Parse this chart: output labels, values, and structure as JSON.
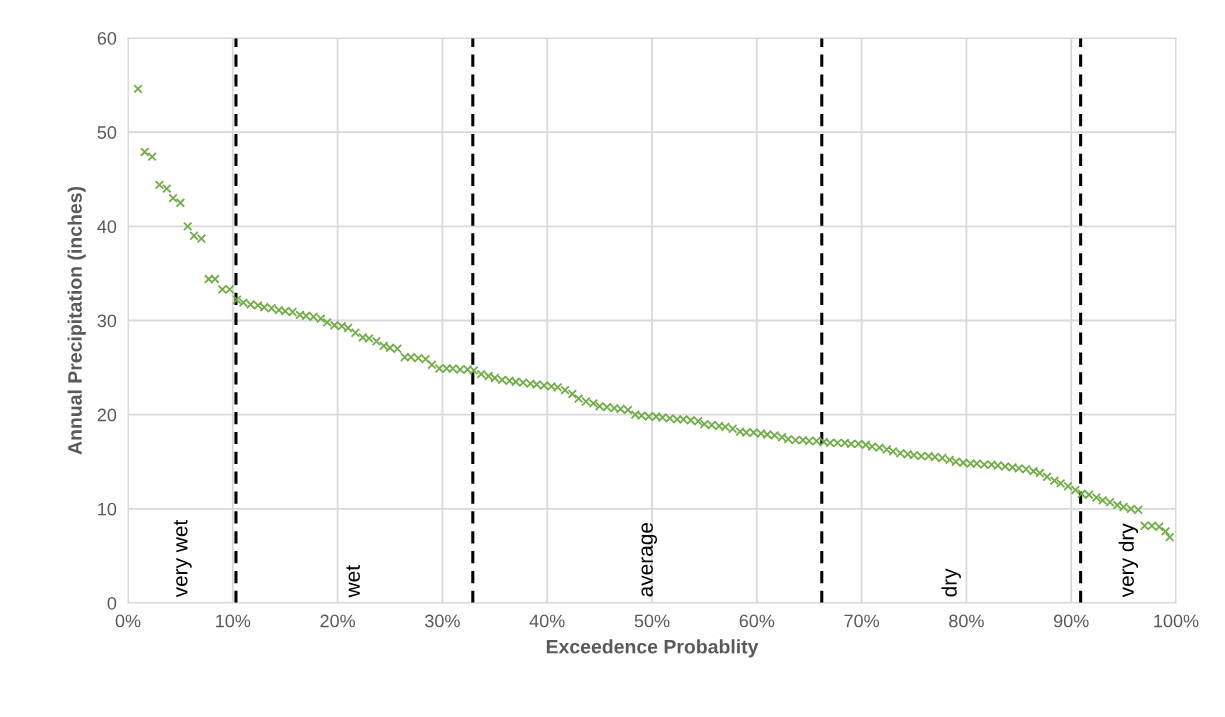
{
  "chart_data": {
    "type": "scatter",
    "xlabel": "Exceedence Probablity",
    "ylabel": "Annual Precipitation (inches)",
    "x": [
      0.95,
      1.6,
      2.3,
      3.0,
      3.7,
      4.3,
      5.0,
      5.7,
      6.3,
      7.0,
      7.7,
      8.3,
      9.0,
      9.7,
      10.4,
      11.0,
      11.7,
      12.4,
      13.0,
      13.7,
      14.4,
      15.0,
      15.7,
      16.4,
      17.0,
      17.7,
      18.4,
      19.0,
      19.7,
      20.4,
      21.0,
      21.7,
      22.4,
      23.0,
      23.7,
      24.4,
      25.0,
      25.7,
      26.4,
      27.0,
      27.7,
      28.4,
      29.0,
      29.7,
      30.4,
      31.0,
      31.7,
      32.4,
      33.0,
      33.7,
      34.4,
      35.0,
      35.7,
      36.4,
      37.0,
      37.7,
      38.4,
      39.0,
      39.7,
      40.4,
      41.0,
      41.7,
      42.4,
      43.0,
      43.7,
      44.4,
      45.0,
      45.7,
      46.4,
      47.0,
      47.7,
      48.4,
      49.0,
      49.7,
      50.4,
      51.0,
      51.7,
      52.4,
      53.0,
      53.7,
      54.4,
      55.0,
      55.7,
      56.4,
      57.0,
      57.7,
      58.4,
      59.0,
      59.7,
      60.4,
      61.0,
      61.7,
      62.4,
      63.0,
      63.7,
      64.4,
      65.0,
      65.7,
      66.4,
      67.0,
      67.7,
      68.4,
      69.0,
      69.7,
      70.4,
      71.0,
      71.7,
      72.4,
      73.0,
      73.7,
      74.4,
      75.0,
      75.7,
      76.4,
      77.0,
      77.7,
      78.4,
      79.0,
      79.7,
      80.4,
      81.0,
      81.7,
      82.4,
      83.0,
      83.7,
      84.4,
      85.0,
      85.7,
      86.4,
      87.0,
      87.7,
      88.4,
      89.0,
      89.7,
      90.4,
      91.0,
      91.7,
      92.4,
      93.0,
      93.7,
      94.4,
      95.0,
      95.7,
      96.4,
      97.0,
      97.7,
      98.4,
      99.0,
      99.4
    ],
    "series": [
      {
        "color": "#70ad47",
        "values": [
          54.6,
          47.9,
          47.4,
          44.4,
          44.0,
          43.0,
          42.5,
          40.0,
          39.0,
          38.7,
          34.4,
          34.4,
          33.3,
          33.3,
          32.2,
          31.9,
          31.7,
          31.6,
          31.4,
          31.3,
          31.1,
          31.0,
          30.9,
          30.6,
          30.5,
          30.4,
          30.2,
          29.8,
          29.5,
          29.4,
          29.2,
          28.7,
          28.2,
          28.1,
          27.8,
          27.3,
          27.1,
          27.0,
          26.1,
          26.1,
          26.0,
          25.9,
          25.3,
          24.9,
          24.9,
          24.9,
          24.8,
          24.8,
          24.7,
          24.3,
          24.1,
          23.9,
          23.7,
          23.6,
          23.5,
          23.4,
          23.3,
          23.2,
          23.1,
          23.0,
          22.9,
          22.6,
          22.2,
          21.7,
          21.4,
          21.2,
          20.9,
          20.8,
          20.7,
          20.6,
          20.5,
          20.0,
          19.9,
          19.8,
          19.8,
          19.7,
          19.6,
          19.5,
          19.5,
          19.4,
          19.3,
          19.0,
          18.9,
          18.8,
          18.7,
          18.5,
          18.2,
          18.1,
          18.1,
          18.0,
          17.9,
          17.8,
          17.6,
          17.4,
          17.3,
          17.3,
          17.2,
          17.2,
          17.1,
          17.0,
          17.0,
          17.0,
          16.9,
          16.9,
          16.8,
          16.6,
          16.5,
          16.3,
          16.1,
          15.9,
          15.8,
          15.7,
          15.6,
          15.6,
          15.5,
          15.4,
          15.2,
          15.0,
          14.9,
          14.8,
          14.8,
          14.7,
          14.7,
          14.6,
          14.5,
          14.4,
          14.3,
          14.2,
          14.0,
          13.8,
          13.4,
          13.0,
          12.7,
          12.4,
          12.0,
          11.6,
          11.5,
          11.2,
          10.9,
          10.7,
          10.4,
          10.2,
          10.0,
          9.9,
          8.2,
          8.2,
          8.1,
          7.6,
          7.0
        ]
      }
    ],
    "marker": "cross",
    "xlim": [
      0,
      100
    ],
    "ylim": [
      0,
      60
    ],
    "xticks": [
      {
        "value": 0,
        "label": "0%"
      },
      {
        "value": 10,
        "label": "10%"
      },
      {
        "value": 20,
        "label": "20%"
      },
      {
        "value": 30,
        "label": "30%"
      },
      {
        "value": 40,
        "label": "40%"
      },
      {
        "value": 50,
        "label": "50%"
      },
      {
        "value": 60,
        "label": "60%"
      },
      {
        "value": 70,
        "label": "70%"
      },
      {
        "value": 80,
        "label": "80%"
      },
      {
        "value": 90,
        "label": "90%"
      },
      {
        "value": 100,
        "label": "100%"
      }
    ],
    "yticks": [
      0,
      10,
      20,
      30,
      40,
      50,
      60
    ],
    "grid": true,
    "ref_lines": [
      {
        "axis": "x",
        "value": 10.3,
        "color": "#000000",
        "line_style": "dashed"
      },
      {
        "axis": "x",
        "value": 32.9,
        "color": "#000000",
        "line_style": "dashed"
      },
      {
        "axis": "x",
        "value": 66.2,
        "color": "#000000",
        "line_style": "dashed"
      },
      {
        "axis": "x",
        "value": 90.9,
        "color": "#000000",
        "line_style": "dashed"
      }
    ],
    "annotations": [
      "very wet",
      "wet",
      "average",
      "dry",
      "very dry"
    ]
  }
}
